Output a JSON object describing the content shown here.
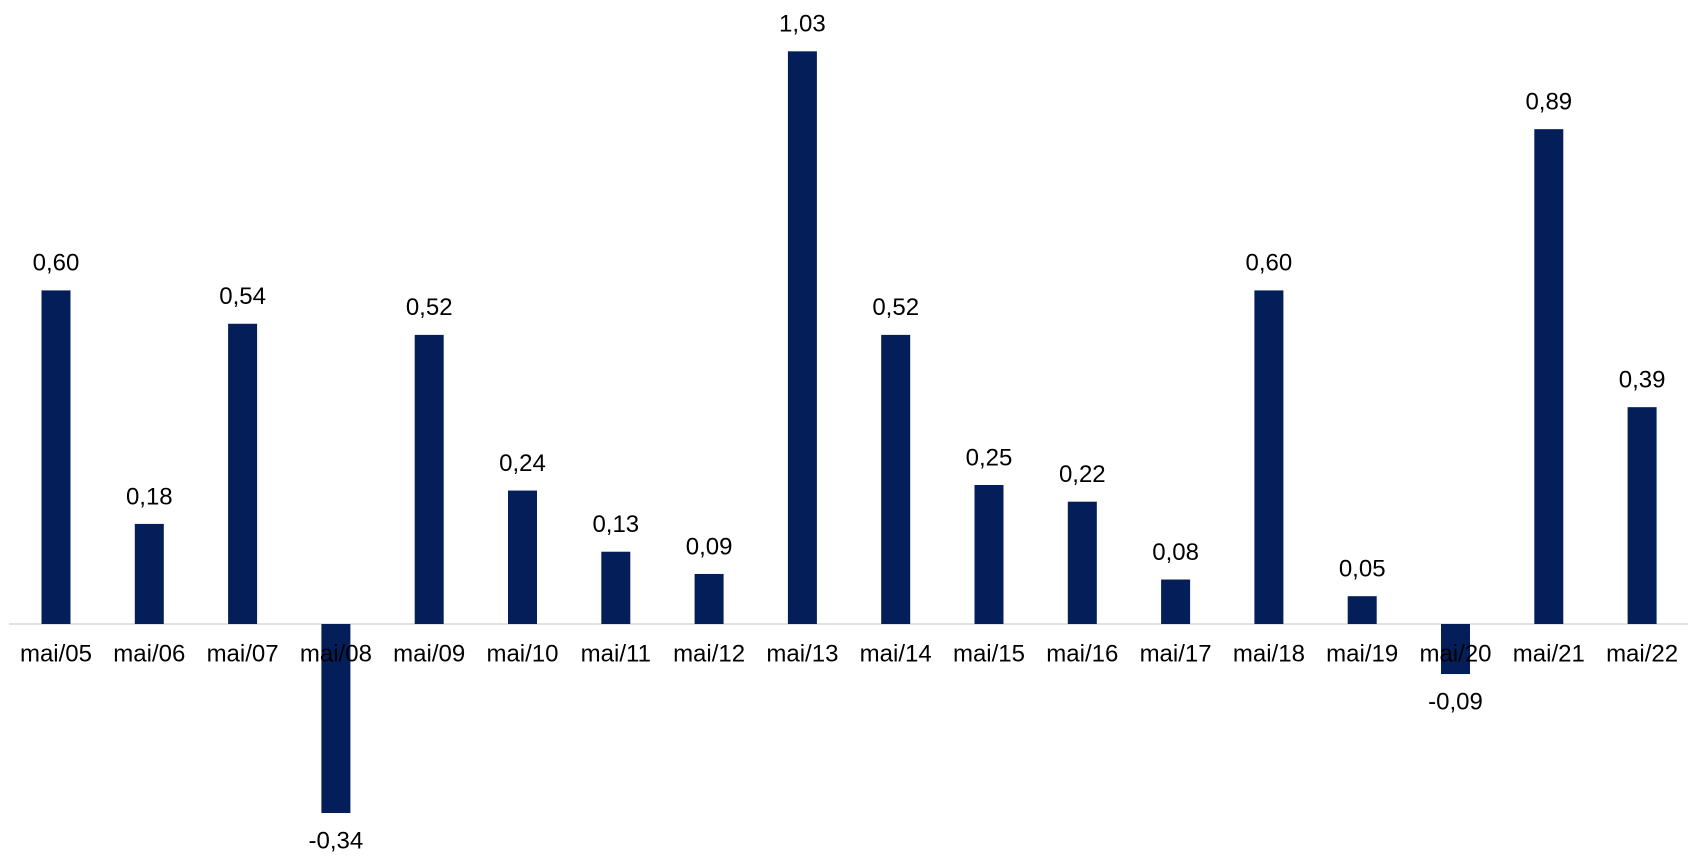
{
  "chart_data": {
    "type": "bar",
    "categories": [
      "mai/05",
      "mai/06",
      "mai/07",
      "mai/08",
      "mai/09",
      "mai/10",
      "mai/11",
      "mai/12",
      "mai/13",
      "mai/14",
      "mai/15",
      "mai/16",
      "mai/17",
      "mai/18",
      "mai/19",
      "mai/20",
      "mai/21",
      "mai/22"
    ],
    "values": [
      0.6,
      0.18,
      0.54,
      -0.34,
      0.52,
      0.24,
      0.13,
      0.09,
      1.03,
      0.52,
      0.25,
      0.22,
      0.08,
      0.6,
      0.05,
      -0.09,
      0.89,
      0.39
    ],
    "value_labels": [
      "0,60",
      "0,18",
      "0,54",
      "-0,34",
      "0,52",
      "0,24",
      "0,13",
      "0,09",
      "1,03",
      "0,52",
      "0,25",
      "0,22",
      "0,08",
      "0,60",
      "0,05",
      "-0,09",
      "0,89",
      "0,39"
    ],
    "color": "#041e5a"
  }
}
